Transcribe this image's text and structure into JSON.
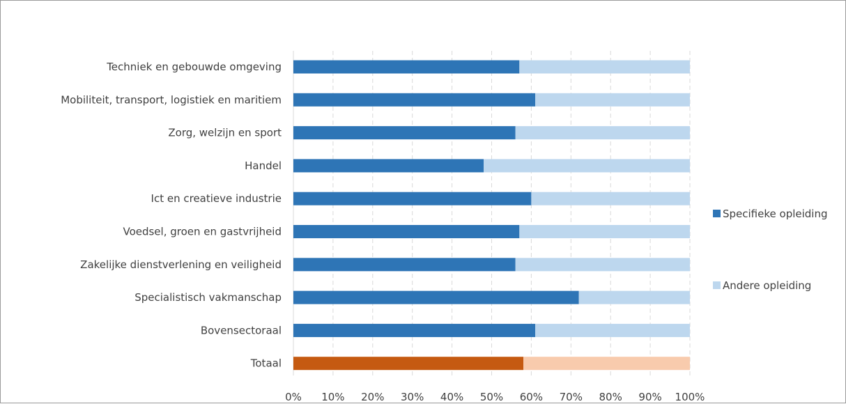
{
  "chart_data": {
    "type": "bar",
    "orientation": "horizontal",
    "stacked": "percent",
    "title": "",
    "xlabel": "",
    "ylabel": "",
    "categories": [
      "Techniek en gebouwde omgeving",
      "Mobiliteit, transport, logistiek en maritiem",
      "Zorg, welzijn en sport",
      "Handel",
      "Ict en creatieve industrie",
      "Voedsel, groen en gastvrijheid",
      "Zakelijke dienstverlening en veiligheid",
      "Specialistisch vakmanschap",
      "Bovensectoraal",
      "Totaal"
    ],
    "series": [
      {
        "name": "Specifieke opleiding",
        "color": "#2e75b6",
        "values": [
          57,
          61,
          56,
          48,
          60,
          57,
          56,
          72,
          61,
          58
        ]
      },
      {
        "name": "Andere opleiding",
        "color": "#bdd7ee",
        "values": [
          43,
          39,
          44,
          52,
          40,
          43,
          44,
          28,
          39,
          42
        ]
      }
    ],
    "highlight": {
      "category": "Totaal",
      "colors": [
        "#c55a11",
        "#f8cbad"
      ]
    },
    "xlim": [
      0,
      100
    ],
    "xticks": [
      "0%",
      "10%",
      "20%",
      "30%",
      "40%",
      "50%",
      "60%",
      "70%",
      "80%",
      "90%",
      "100%"
    ],
    "grid": "vertical-dashed",
    "legend_position": "right"
  }
}
